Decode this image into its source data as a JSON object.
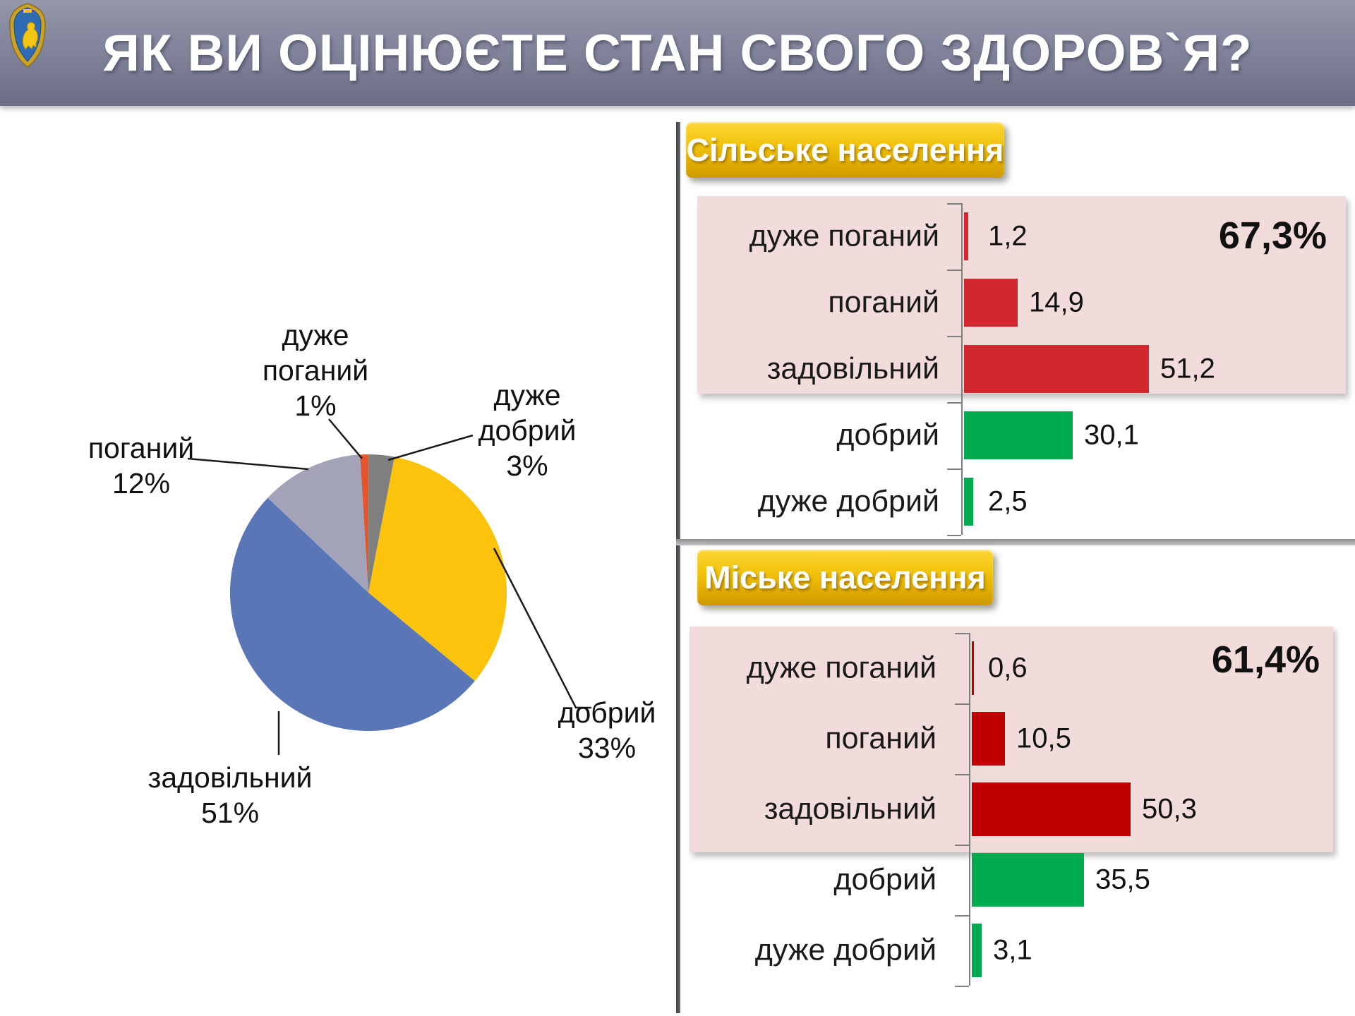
{
  "header": {
    "title": "ЯК ВИ ОЦІНЮЄТЕ СТАН СВОГО ЗДОРОВ`Я?",
    "emblem": "lviv-oblast-coat-of-arms"
  },
  "pie": {
    "start_angle_deg": -3.5,
    "slices": [
      {
        "name": "дуже поганий",
        "pct": "1%",
        "value": 1,
        "color": "#e4552b"
      },
      {
        "name": "дуже добрий",
        "pct": "3%",
        "value": 3,
        "color": "#7f7f7f"
      },
      {
        "name": "добрий",
        "pct": "33%",
        "value": 33,
        "color": "#fbc30c"
      },
      {
        "name": "задовільний",
        "pct": "51%",
        "value": 51,
        "color": "#5b76b7"
      },
      {
        "name": "поганий",
        "pct": "12%",
        "value": 12,
        "color": "#a2a3b8"
      }
    ]
  },
  "rural": {
    "badge": "Сільське населення",
    "annotation": "67,3%",
    "rows": [
      {
        "label": "дуже поганий",
        "value": "1,2",
        "num": 1.2,
        "color": "#d0282e"
      },
      {
        "label": "поганий",
        "value": "14,9",
        "num": 14.9,
        "color": "#d0282e"
      },
      {
        "label": "задовільний",
        "value": "51,2",
        "num": 51.2,
        "color": "#d0282e"
      },
      {
        "label": "добрий",
        "value": "30,1",
        "num": 30.1,
        "color": "#00ab4f"
      },
      {
        "label": "дуже добрий",
        "value": "2,5",
        "num": 2.5,
        "color": "#00ab4f"
      }
    ]
  },
  "urban": {
    "badge": "Міське населення",
    "annotation": "61,4%",
    "rows": [
      {
        "label": "дуже поганий",
        "value": "0,6",
        "num": 0.6,
        "color": "#c00000"
      },
      {
        "label": "поганий",
        "value": "10,5",
        "num": 10.5,
        "color": "#c00000"
      },
      {
        "label": "задовільний",
        "value": "50,3",
        "num": 50.3,
        "color": "#c00000"
      },
      {
        "label": "добрий",
        "value": "35,5",
        "num": 35.5,
        "color": "#00ab4f"
      },
      {
        "label": "дуже добрий",
        "value": "3,1",
        "num": 3.1,
        "color": "#00ab4f"
      }
    ]
  },
  "chart_data": [
    {
      "type": "pie",
      "title": "",
      "categories": [
        "дуже поганий",
        "дуже добрий",
        "добрий",
        "задовільний",
        "поганий"
      ],
      "values": [
        1,
        3,
        33,
        51,
        12
      ],
      "colors": [
        "#e4552b",
        "#7f7f7f",
        "#fbc30c",
        "#5b76b7",
        "#a2a3b8"
      ],
      "legend_position": "data-labels-outside"
    },
    {
      "type": "bar",
      "title": "Сільське населення",
      "orientation": "horizontal",
      "categories": [
        "дуже поганий",
        "поганий",
        "задовільний",
        "добрий",
        "дуже добрий"
      ],
      "values": [
        1.2,
        14.9,
        51.2,
        30.1,
        2.5
      ],
      "bar_colors": [
        "#d0282e",
        "#d0282e",
        "#d0282e",
        "#00ab4f",
        "#00ab4f"
      ],
      "annotation": "67,3%",
      "highlight_background": "#f2dcdb",
      "xlabel": "",
      "ylabel": "",
      "xlim": [
        0,
        100
      ],
      "grid": false
    },
    {
      "type": "bar",
      "title": "Міське населення",
      "orientation": "horizontal",
      "categories": [
        "дуже поганий",
        "поганий",
        "задовільний",
        "добрий",
        "дуже добрий"
      ],
      "values": [
        0.6,
        10.5,
        50.3,
        35.5,
        3.1
      ],
      "bar_colors": [
        "#c00000",
        "#c00000",
        "#c00000",
        "#00ab4f",
        "#00ab4f"
      ],
      "annotation": "61,4%",
      "highlight_background": "#f2dcdb",
      "xlabel": "",
      "ylabel": "",
      "xlim": [
        0,
        100
      ],
      "grid": false
    }
  ]
}
